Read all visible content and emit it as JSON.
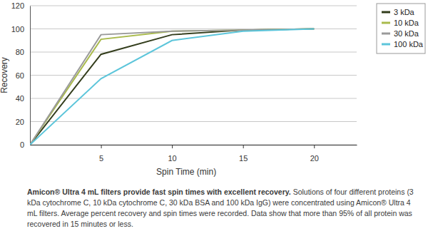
{
  "chart_data": {
    "type": "line",
    "title": "Amicon® Ultra 4 mL filters provide fast spin times with excellent recovery.",
    "subtitle": "Solutions of four different proteins (3 kDa cytochrome C, 10 kDa cytochrome C, 30 kDa BSA and 100 kDa IgG) were concentrated using Amicon® Ultra 4 mL filters. Average percent recovery and spin times were recorded. Data show that more than 95% of all protein was recovered in 15 minutes or less.",
    "x_label": "Spin Time (min)",
    "y_label": "Recovery",
    "x": [
      0,
      5,
      10,
      15,
      20
    ],
    "series": [
      {
        "name": "3 kDa",
        "color": "#333d1c",
        "values": [
          0,
          78,
          95,
          99,
          100
        ]
      },
      {
        "name": "10 kDa",
        "color": "#a9ba4c",
        "values": [
          0,
          91,
          98,
          99,
          100
        ]
      },
      {
        "name": "30 kDa",
        "color": "#9a9a9a",
        "values": [
          0,
          95,
          98,
          99,
          100
        ]
      },
      {
        "name": "100 kDa",
        "color": "#5cc5da",
        "values": [
          0,
          57,
          90,
          98,
          100
        ]
      }
    ],
    "xlim": [
      0,
      23
    ],
    "xticks": [
      5,
      10,
      15,
      20
    ],
    "ylim": [
      0,
      120
    ],
    "yticks": [
      0,
      20,
      40,
      60,
      80,
      100,
      120
    ],
    "grid": true,
    "legend": "upper right"
  }
}
